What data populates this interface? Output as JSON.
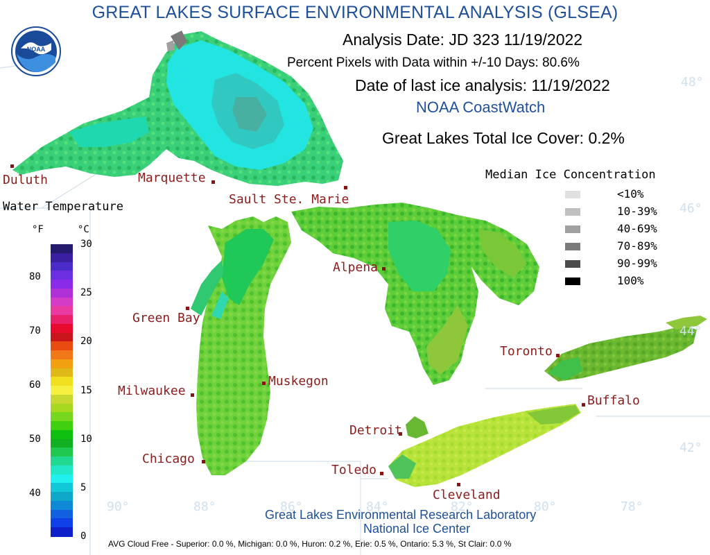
{
  "header": {
    "title": "GREAT LAKES SURFACE ENVIRONMENTAL ANALYSIS (GLSEA)",
    "analysis_date": "Analysis Date:  JD 323 11/19/2022",
    "percent_pixels": "Percent Pixels with Data within +/-10 Days:  80.6%",
    "last_ice": "Date of last ice analysis: 11/19/2022",
    "agency": "NOAA CoastWatch",
    "total_ice": "Great Lakes Total Ice Cover:   0.2%"
  },
  "logo": {
    "text": "NOAA"
  },
  "cities": [
    {
      "name": "Duluth"
    },
    {
      "name": "Marquette"
    },
    {
      "name": "Sault Ste. Marie"
    },
    {
      "name": "Green Bay"
    },
    {
      "name": "Alpena"
    },
    {
      "name": "Milwaukee"
    },
    {
      "name": "Muskegon"
    },
    {
      "name": "Chicago"
    },
    {
      "name": "Detroit"
    },
    {
      "name": "Toledo"
    },
    {
      "name": "Cleveland"
    },
    {
      "name": "Toronto"
    },
    {
      "name": "Buffalo"
    }
  ],
  "grid_labels": {
    "lat": [
      "48°",
      "46°",
      "44°",
      "42°"
    ],
    "lon": [
      "90°",
      "88°",
      "86°",
      "84°",
      "82°",
      "80°",
      "78°"
    ]
  },
  "water_temp_legend": {
    "title": "Water Temperature",
    "unit_f": "°F",
    "unit_c": "°C",
    "f_ticks": [
      "80",
      "70",
      "60",
      "50",
      "40"
    ],
    "c_ticks": [
      "30",
      "25",
      "20",
      "15",
      "10",
      "5",
      "0"
    ],
    "colors": [
      "#241a6e",
      "#3a1fa0",
      "#4a2cc8",
      "#6b2ee0",
      "#8a2be8",
      "#b030d8",
      "#d43cc8",
      "#e83aa0",
      "#e8206a",
      "#e80a2c",
      "#c8141a",
      "#e84a10",
      "#f07818",
      "#f0a010",
      "#e0b818",
      "#f0e020",
      "#f8f040",
      "#c8d830",
      "#a8d820",
      "#78d820",
      "#40d010",
      "#10c010",
      "#10b020",
      "#20c850",
      "#20d890",
      "#20e8c8",
      "#20f0f0",
      "#10c8d8",
      "#10a8c8",
      "#1088d8",
      "#1060e0",
      "#1040e8",
      "#1020c8"
    ]
  },
  "ice_legend": {
    "title": "Median Ice Concentration",
    "items": [
      {
        "label": "<10%",
        "color": "#e0e0e0"
      },
      {
        "label": "10-39%",
        "color": "#c0c0c0"
      },
      {
        "label": "40-69%",
        "color": "#a0a0a0"
      },
      {
        "label": "70-89%",
        "color": "#7a7a7a"
      },
      {
        "label": "90-99%",
        "color": "#4a4a4a"
      },
      {
        "label": "100%",
        "color": "#000000"
      }
    ]
  },
  "credits": {
    "line1": "Great Lakes Environmental Research Laboratory",
    "line2": "National Ice Center"
  },
  "footer": {
    "cloud_free": "AVG Cloud Free - Superior:   0.0 %, Michigan:   0.0 %, Huron:   0.2 %, Erie:   0.5 %, Ontario:  5.3 %, St Clair:  0.0 %"
  }
}
